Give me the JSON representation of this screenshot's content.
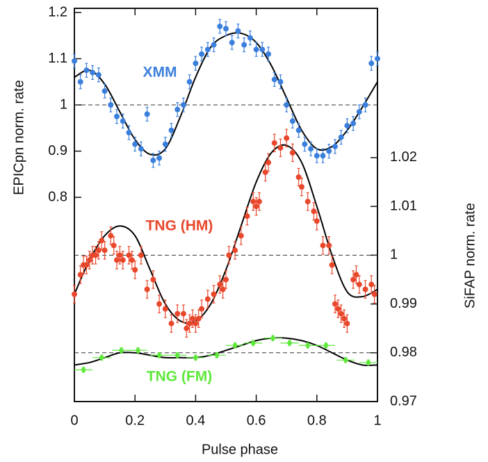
{
  "chart_data": {
    "type": "scatter",
    "xlabel": "Pulse phase",
    "ylabel": "EPICpn norm. rate",
    "y2label": "SiFAP norm. rate",
    "xlim": [
      0,
      1
    ],
    "xticks": [
      0,
      0.2,
      0.4,
      0.6,
      0.8,
      1
    ],
    "ylim": [
      0.358,
      1.209
    ],
    "yticks": [
      0.8,
      0.9,
      1,
      1.1,
      1.2
    ],
    "y2lim": [
      0.97,
      1.0506
    ],
    "y2ticks": [
      0.97,
      0.98,
      0.99,
      1,
      1.01,
      1.02
    ],
    "reference_lines": [
      {
        "value": 1,
        "axis": "y"
      },
      {
        "value": 1,
        "axis": "y2"
      },
      {
        "value": 0.98,
        "axis": "y2"
      }
    ],
    "series": [
      {
        "name": "XMM",
        "color": "#3b7fdc",
        "axis": "y",
        "yerr": 0.015,
        "x": [
          0,
          0.02,
          0.04,
          0.06,
          0.08,
          0.1,
          0.12,
          0.14,
          0.16,
          0.18,
          0.2,
          0.22,
          0.24,
          0.26,
          0.28,
          0.3,
          0.32,
          0.34,
          0.36,
          0.38,
          0.4,
          0.42,
          0.44,
          0.46,
          0.48,
          0.5,
          0.52,
          0.54,
          0.56,
          0.58,
          0.6,
          0.62,
          0.64,
          0.66,
          0.68,
          0.7,
          0.72,
          0.74,
          0.76,
          0.78,
          0.8,
          0.82,
          0.84,
          0.86,
          0.88,
          0.9,
          0.92,
          0.94,
          0.96,
          0.98,
          1
        ],
        "values": [
          1.095,
          1.05,
          1.075,
          1.07,
          1.065,
          1.03,
          1.0,
          0.975,
          0.965,
          0.94,
          0.915,
          0.905,
          0.98,
          0.88,
          0.885,
          0.915,
          0.945,
          0.99,
          1.0,
          1.05,
          1.09,
          1.11,
          1.12,
          1.13,
          1.17,
          1.165,
          1.135,
          1.16,
          1.13,
          1.145,
          1.12,
          1.12,
          1.11,
          1.055,
          1.05,
          1.0,
          0.965,
          0.945,
          0.915,
          0.905,
          0.89,
          0.89,
          0.9,
          0.91,
          0.93,
          0.955,
          0.96,
          0.985,
          1.0,
          1.09,
          1.1
        ]
      },
      {
        "name": "TNG (HM)",
        "color": "#e8472b",
        "axis": "y2",
        "yerr": 0.0018,
        "x": [
          0,
          0.02,
          0.03,
          0.04,
          0.05,
          0.06,
          0.07,
          0.08,
          0.09,
          0.1,
          0.12,
          0.13,
          0.14,
          0.15,
          0.16,
          0.18,
          0.19,
          0.2,
          0.22,
          0.24,
          0.26,
          0.28,
          0.3,
          0.32,
          0.34,
          0.36,
          0.37,
          0.38,
          0.39,
          0.4,
          0.41,
          0.42,
          0.44,
          0.46,
          0.48,
          0.49,
          0.5,
          0.51,
          0.53,
          0.55,
          0.57,
          0.59,
          0.6,
          0.61,
          0.63,
          0.64,
          0.66,
          0.68,
          0.7,
          0.72,
          0.74,
          0.75,
          0.77,
          0.79,
          0.8,
          0.82,
          0.84,
          0.85,
          0.86,
          0.87,
          0.88,
          0.89,
          0.9,
          0.92,
          0.93,
          0.94,
          0.96,
          0.98,
          0.99
        ],
        "values": [
          0.992,
          0.996,
          0.998,
          0.998,
          0.999,
          1.0,
          1.0,
          1.001,
          1.003,
          1.001,
          1.004,
          1.002,
          0.999,
          1.0,
          0.999,
          1.0,
          0.999,
          0.997,
          1.0,
          0.993,
          0.995,
          0.99,
          0.989,
          0.986,
          0.988,
          0.988,
          0.985,
          0.986,
          0.987,
          0.986,
          0.987,
          0.989,
          0.991,
          0.992,
          0.994,
          0.993,
          0.995,
          1.0,
          1.001,
          1.004,
          1.008,
          1.011,
          1.01,
          1.011,
          1.017,
          1.019,
          1.023,
          1.022,
          1.024,
          1.021,
          1.016,
          1.014,
          1.011,
          1.009,
          1.007,
          1.002,
          1.002,
          0.998,
          0.99,
          0.989,
          0.988,
          0.987,
          0.986,
          0.995,
          0.996,
          0.994,
          0.993,
          0.994,
          0.992
        ]
      },
      {
        "name": "TNG (FM)",
        "color": "#5ee83a",
        "axis": "y2",
        "yerr": 0.0005,
        "xerr": 0.03,
        "x": [
          0.03,
          0.09,
          0.155,
          0.21,
          0.28,
          0.34,
          0.4,
          0.47,
          0.53,
          0.59,
          0.655,
          0.71,
          0.77,
          0.83,
          0.895,
          0.97
        ],
        "values": [
          0.9765,
          0.979,
          0.9805,
          0.9805,
          0.9795,
          0.9795,
          0.979,
          0.9795,
          0.9815,
          0.982,
          0.983,
          0.982,
          0.9815,
          0.9815,
          0.9785,
          0.978
        ]
      }
    ],
    "model_x": [
      0,
      0.05,
      0.1,
      0.15,
      0.2,
      0.25,
      0.3,
      0.35,
      0.4,
      0.45,
      0.5,
      0.55,
      0.6,
      0.65,
      0.7,
      0.75,
      0.8,
      0.85,
      0.9,
      0.95,
      1
    ],
    "models": [
      {
        "axis": "y",
        "values": [
          1.06,
          1.075,
          1.045,
          0.985,
          0.925,
          0.893,
          0.905,
          0.975,
          1.06,
          1.125,
          1.15,
          1.155,
          1.135,
          1.085,
          1.015,
          0.945,
          0.905,
          0.91,
          0.945,
          0.995,
          1.05
        ]
      },
      {
        "axis": "y2",
        "values": [
          0.992,
          0.999,
          1.004,
          1.006,
          1.004,
          0.997,
          0.99,
          0.9865,
          0.9865,
          0.99,
          0.997,
          1.006,
          1.015,
          1.021,
          1.0225,
          1.019,
          1.01,
          1.0,
          0.9925,
          0.9915,
          0.993
        ]
      },
      {
        "axis": "y2",
        "values": [
          0.9775,
          0.978,
          0.979,
          0.98,
          0.98,
          0.9795,
          0.979,
          0.979,
          0.979,
          0.9795,
          0.9805,
          0.9815,
          0.9825,
          0.983,
          0.983,
          0.9825,
          0.9815,
          0.98,
          0.9785,
          0.9775,
          0.9775
        ]
      }
    ]
  }
}
